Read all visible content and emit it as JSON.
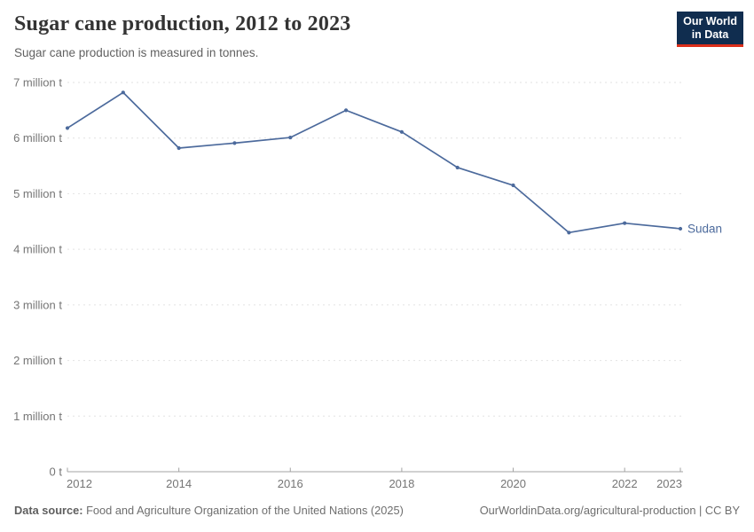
{
  "header": {
    "title": "Sugar cane production, 2012 to 2023",
    "subtitle": "Sugar cane production is measured in tonnes.",
    "logo": {
      "line1": "Our World",
      "line2": "in Data",
      "bg_color": "#102D4F",
      "accent_color": "#DC2F1B"
    }
  },
  "chart_data": {
    "type": "line",
    "title": "Sugar cane production, 2012 to 2023",
    "unit": "tonnes",
    "xlabel": "",
    "ylabel": "",
    "xlim": [
      2012,
      2023
    ],
    "ylim_million_tonnes": [
      0,
      7
    ],
    "grid": "horizontal-dashed",
    "legend_position": "end-of-line-label",
    "x_ticks": [
      2012,
      2014,
      2016,
      2018,
      2020,
      2022,
      2023
    ],
    "y_ticks": [
      {
        "value": 0,
        "label": "0 t"
      },
      {
        "value": 1,
        "label": "1 million t"
      },
      {
        "value": 2,
        "label": "2 million t"
      },
      {
        "value": 3,
        "label": "3 million t"
      },
      {
        "value": 4,
        "label": "4 million t"
      },
      {
        "value": 5,
        "label": "5 million t"
      },
      {
        "value": 6,
        "label": "6 million t"
      },
      {
        "value": 7,
        "label": "7 million t"
      }
    ],
    "series": [
      {
        "name": "Sudan",
        "color": "#4C6A9C",
        "x": [
          2012,
          2013,
          2014,
          2015,
          2016,
          2017,
          2018,
          2019,
          2020,
          2021,
          2022,
          2023
        ],
        "values_million_tonnes": [
          6.18,
          6.82,
          5.82,
          5.91,
          6.01,
          6.5,
          6.11,
          5.47,
          5.15,
          4.3,
          4.47,
          4.37
        ]
      }
    ],
    "colors": {
      "gridline": "#e2e2e2",
      "axis": "#a3a3a3",
      "tick_text": "#757575"
    }
  },
  "footer": {
    "source_label": "Data source:",
    "source_text": "Food and Agriculture Organization of the United Nations (2025)",
    "credit": "OurWorldinData.org/agricultural-production | CC BY"
  }
}
